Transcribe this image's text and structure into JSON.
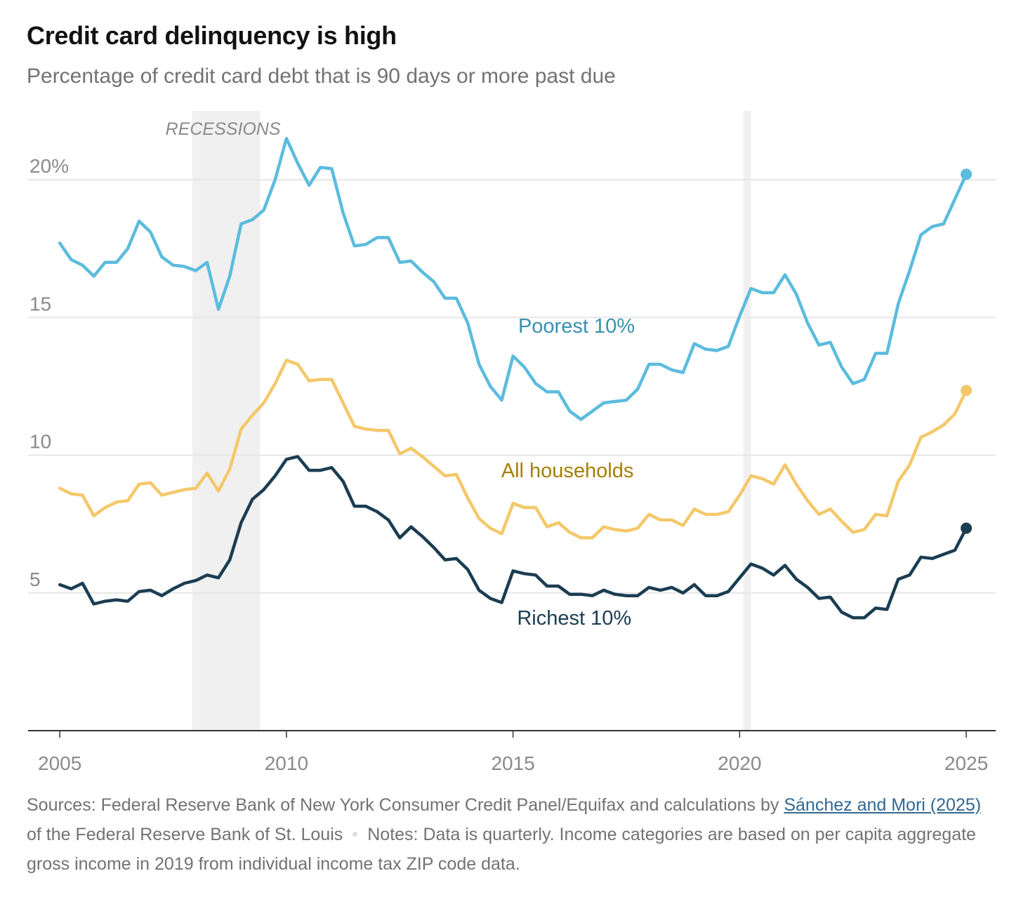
{
  "header": {
    "title": "Credit card delinquency is high",
    "subtitle": "Percentage of credit card debt that is 90 days or more past due"
  },
  "chart_data": {
    "type": "line",
    "title": "Credit card delinquency is high",
    "subtitle": "Percentage of credit card debt that is 90 days or more past due",
    "xlabel": "",
    "ylabel": "",
    "xlim": [
      2004.3,
      2025.65
    ],
    "ylim": [
      0,
      22.5
    ],
    "x_ticks": [
      2005,
      2010,
      2015,
      2020,
      2025
    ],
    "x_tick_labels": [
      "2005",
      "2010",
      "2015",
      "2020",
      "2025"
    ],
    "y_ticks": [
      5,
      10,
      15,
      20
    ],
    "y_tick_labels": [
      "5",
      "10",
      "15",
      "20%"
    ],
    "grid": "horizontal",
    "recessions": [
      [
        2007.92,
        2009.42
      ],
      [
        2020.08,
        2020.25
      ]
    ],
    "recession_label": "RECESSIONS",
    "colors": {
      "poorest": "#5bbcde",
      "all": "#f4c86a",
      "richest": "#1b3d52",
      "all_label": "#a57f00",
      "poorest_label": "#3a8fb0",
      "recession": "#f0f0f0",
      "grid": "#e6e6e6",
      "axis": "#333333"
    },
    "series": [
      {
        "name": "Poorest 10%",
        "key": "poorest",
        "x": [
          2005,
          2005.25,
          2005.5,
          2005.75,
          2006,
          2006.25,
          2006.5,
          2006.75,
          2007,
          2007.25,
          2007.5,
          2007.75,
          2008,
          2008.25,
          2008.5,
          2008.75,
          2009,
          2009.25,
          2009.5,
          2009.75,
          2010,
          2010.25,
          2010.5,
          2010.75,
          2011,
          2011.25,
          2011.5,
          2011.75,
          2012,
          2012.25,
          2012.5,
          2012.75,
          2013,
          2013.25,
          2013.5,
          2013.75,
          2014,
          2014.25,
          2014.5,
          2014.75,
          2015,
          2015.25,
          2015.5,
          2015.75,
          2016,
          2016.25,
          2016.5,
          2016.75,
          2017,
          2017.25,
          2017.5,
          2017.75,
          2018,
          2018.25,
          2018.5,
          2018.75,
          2019,
          2019.25,
          2019.5,
          2019.75,
          2020,
          2020.25,
          2020.5,
          2020.75,
          2021,
          2021.25,
          2021.5,
          2021.75,
          2022,
          2022.25,
          2022.5,
          2022.75,
          2023,
          2023.25,
          2023.5,
          2023.75,
          2024,
          2024.25,
          2024.5,
          2024.75,
          2025
        ],
        "values": [
          17.7,
          17.1,
          16.9,
          16.5,
          17.0,
          17.0,
          17.5,
          18.5,
          18.1,
          17.2,
          16.9,
          16.85,
          16.7,
          17.0,
          15.3,
          16.5,
          18.4,
          18.55,
          18.9,
          20.0,
          21.5,
          20.6,
          19.8,
          20.45,
          20.4,
          18.8,
          17.6,
          17.65,
          17.9,
          17.9,
          17.0,
          17.05,
          16.65,
          16.3,
          15.7,
          15.7,
          14.8,
          13.3,
          12.5,
          12.0,
          13.6,
          13.2,
          12.6,
          12.3,
          12.3,
          11.6,
          11.3,
          11.6,
          11.9,
          11.95,
          12.0,
          12.4,
          13.3,
          13.3,
          13.1,
          13.0,
          14.05,
          13.85,
          13.8,
          13.95,
          15.05,
          16.05,
          15.9,
          15.9,
          16.55,
          15.85,
          14.8,
          14.0,
          14.1,
          13.2,
          12.6,
          12.75,
          13.7,
          13.7,
          15.5,
          16.7,
          18.0,
          18.3,
          18.4,
          19.3,
          20.2
        ]
      },
      {
        "name": "All households",
        "key": "all",
        "x": [
          2005,
          2005.25,
          2005.5,
          2005.75,
          2006,
          2006.25,
          2006.5,
          2006.75,
          2007,
          2007.25,
          2007.5,
          2007.75,
          2008,
          2008.25,
          2008.5,
          2008.75,
          2009,
          2009.25,
          2009.5,
          2009.75,
          2010,
          2010.25,
          2010.5,
          2010.75,
          2011,
          2011.25,
          2011.5,
          2011.75,
          2012,
          2012.25,
          2012.5,
          2012.75,
          2013,
          2013.25,
          2013.5,
          2013.75,
          2014,
          2014.25,
          2014.5,
          2014.75,
          2015,
          2015.25,
          2015.5,
          2015.75,
          2016,
          2016.25,
          2016.5,
          2016.75,
          2017,
          2017.25,
          2017.5,
          2017.75,
          2018,
          2018.25,
          2018.5,
          2018.75,
          2019,
          2019.25,
          2019.5,
          2019.75,
          2020,
          2020.25,
          2020.5,
          2020.75,
          2021,
          2021.25,
          2021.5,
          2021.75,
          2022,
          2022.25,
          2022.5,
          2022.75,
          2023,
          2023.25,
          2023.5,
          2023.75,
          2024,
          2024.25,
          2024.5,
          2024.75,
          2025
        ],
        "values": [
          8.8,
          8.6,
          8.55,
          7.8,
          8.1,
          8.3,
          8.35,
          8.95,
          9.0,
          8.55,
          8.65,
          8.75,
          8.8,
          9.35,
          8.7,
          9.5,
          10.95,
          11.45,
          11.9,
          12.6,
          13.45,
          13.3,
          12.7,
          12.75,
          12.75,
          11.9,
          11.05,
          10.95,
          10.9,
          10.9,
          10.05,
          10.25,
          9.95,
          9.6,
          9.25,
          9.3,
          8.45,
          7.7,
          7.35,
          7.15,
          8.25,
          8.1,
          8.1,
          7.4,
          7.55,
          7.2,
          7.0,
          7.0,
          7.4,
          7.3,
          7.25,
          7.35,
          7.85,
          7.65,
          7.65,
          7.45,
          8.05,
          7.85,
          7.85,
          7.95,
          8.55,
          9.25,
          9.15,
          8.95,
          9.65,
          8.95,
          8.35,
          7.85,
          8.05,
          7.6,
          7.2,
          7.3,
          7.85,
          7.8,
          9.05,
          9.65,
          10.65,
          10.85,
          11.1,
          11.5,
          12.35
        ]
      },
      {
        "name": "Richest 10%",
        "key": "richest",
        "x": [
          2005,
          2005.25,
          2005.5,
          2005.75,
          2006,
          2006.25,
          2006.5,
          2006.75,
          2007,
          2007.25,
          2007.5,
          2007.75,
          2008,
          2008.25,
          2008.5,
          2008.75,
          2009,
          2009.25,
          2009.5,
          2009.75,
          2010,
          2010.25,
          2010.5,
          2010.75,
          2011,
          2011.25,
          2011.5,
          2011.75,
          2012,
          2012.25,
          2012.5,
          2012.75,
          2013,
          2013.25,
          2013.5,
          2013.75,
          2014,
          2014.25,
          2014.5,
          2014.75,
          2015,
          2015.25,
          2015.5,
          2015.75,
          2016,
          2016.25,
          2016.5,
          2016.75,
          2017,
          2017.25,
          2017.5,
          2017.75,
          2018,
          2018.25,
          2018.5,
          2018.75,
          2019,
          2019.25,
          2019.5,
          2019.75,
          2020,
          2020.25,
          2020.5,
          2020.75,
          2021,
          2021.25,
          2021.5,
          2021.75,
          2022,
          2022.25,
          2022.5,
          2022.75,
          2023,
          2023.25,
          2023.5,
          2023.75,
          2024,
          2024.25,
          2024.5,
          2024.75,
          2025
        ],
        "values": [
          5.3,
          5.15,
          5.35,
          4.6,
          4.7,
          4.75,
          4.7,
          5.05,
          5.1,
          4.9,
          5.15,
          5.35,
          5.45,
          5.65,
          5.55,
          6.2,
          7.55,
          8.4,
          8.75,
          9.25,
          9.85,
          9.95,
          9.45,
          9.45,
          9.55,
          9.05,
          8.15,
          8.15,
          7.95,
          7.65,
          7.0,
          7.4,
          7.05,
          6.65,
          6.2,
          6.25,
          5.85,
          5.1,
          4.8,
          4.65,
          5.8,
          5.7,
          5.65,
          5.25,
          5.25,
          4.95,
          4.95,
          4.9,
          5.1,
          4.95,
          4.9,
          4.9,
          5.2,
          5.1,
          5.2,
          5.0,
          5.3,
          4.9,
          4.9,
          5.05,
          5.55,
          6.05,
          5.9,
          5.65,
          6.0,
          5.5,
          5.2,
          4.8,
          4.85,
          4.3,
          4.1,
          4.1,
          4.45,
          4.4,
          5.5,
          5.65,
          6.3,
          6.25,
          6.4,
          6.55,
          7.35
        ]
      }
    ],
    "series_labels": [
      {
        "text": "Poorest 10%",
        "x": 2016.4,
        "y": 14.45,
        "key": "poorest_label"
      },
      {
        "text": "All households",
        "x": 2016.2,
        "y": 9.2,
        "key": "all_label"
      },
      {
        "text": "Richest 10%",
        "x": 2016.35,
        "y": 3.85,
        "key": "richest"
      }
    ]
  },
  "footer": {
    "sources_prefix": "Sources: Federal Reserve Bank of New York Consumer Credit Panel/Equifax and calculations by ",
    "sources_link": "Sánchez and Mori (2025)",
    "sources_suffix": " of the Federal Reserve Bank of St. Louis",
    "notes": "Notes: Data is quarterly. Income categories are based on per capita aggregate gross income in 2019 from individual income tax ZIP code data."
  }
}
